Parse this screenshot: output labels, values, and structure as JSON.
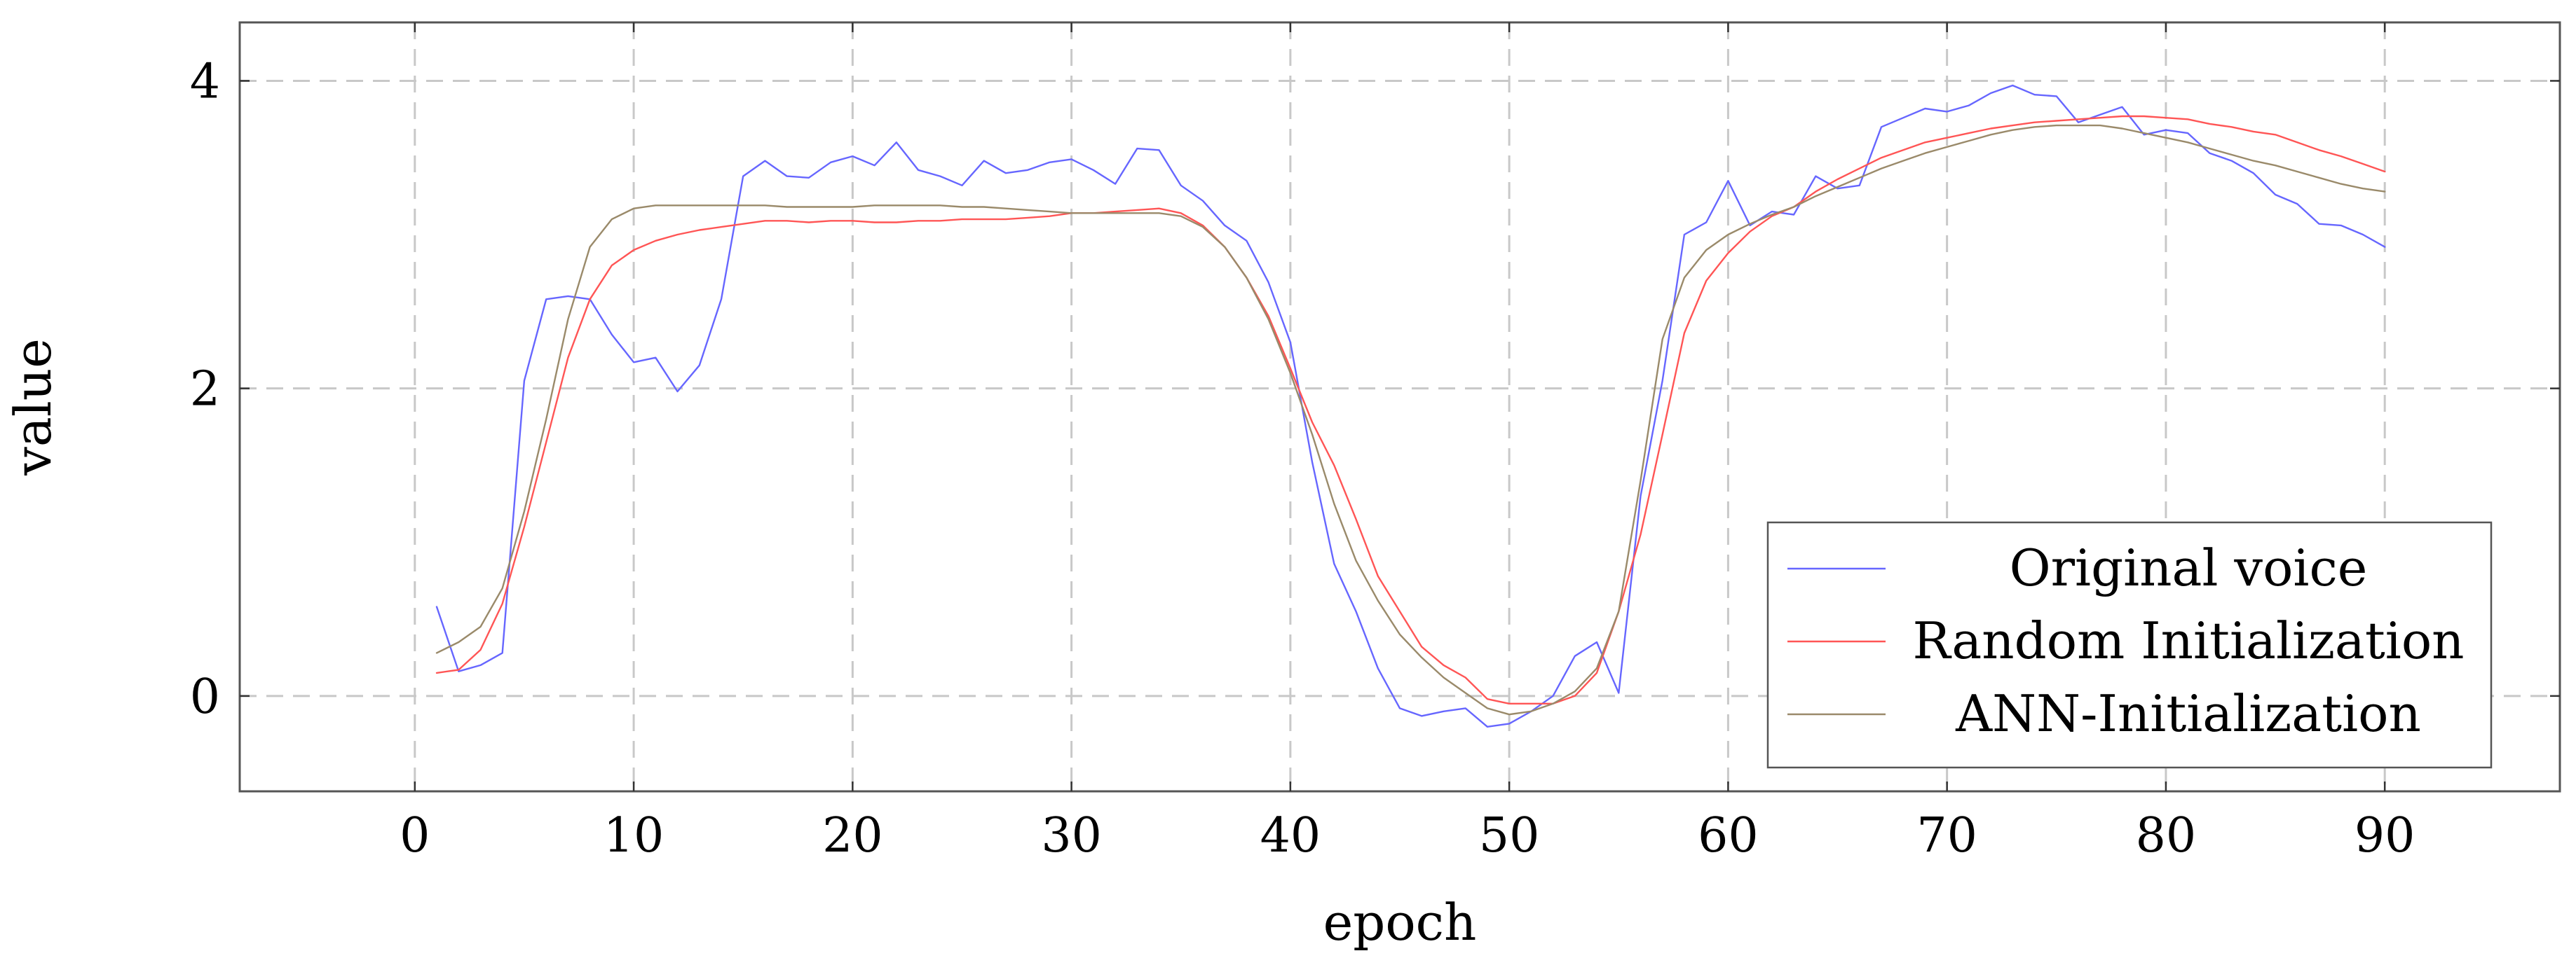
{
  "chart_data": {
    "type": "line",
    "title": "",
    "xlabel": "epoch",
    "ylabel": "value",
    "xlim": [
      -8,
      98
    ],
    "ylim": [
      -0.62,
      4.38
    ],
    "xticks": [
      0,
      10,
      20,
      30,
      40,
      50,
      60,
      70,
      80,
      90
    ],
    "yticks": [
      0,
      2,
      4
    ],
    "grid": true,
    "legend_position": "bottom-right",
    "x": [
      1,
      2,
      3,
      4,
      5,
      6,
      7,
      8,
      9,
      10,
      11,
      12,
      13,
      14,
      15,
      16,
      17,
      18,
      19,
      20,
      21,
      22,
      23,
      24,
      25,
      26,
      27,
      28,
      29,
      30,
      31,
      32,
      33,
      34,
      35,
      36,
      37,
      38,
      39,
      40,
      41,
      42,
      43,
      44,
      45,
      46,
      47,
      48,
      49,
      50,
      51,
      52,
      53,
      54,
      55,
      56,
      57,
      58,
      59,
      60,
      61,
      62,
      63,
      64,
      65,
      66,
      67,
      68,
      69,
      70,
      71,
      72,
      73,
      74,
      75,
      76,
      77,
      78,
      79,
      80,
      81,
      82,
      83,
      84,
      85,
      86,
      87,
      88,
      89,
      90
    ],
    "series": [
      {
        "name": "Original voice",
        "color": "#6666ff",
        "values": [
          0.58,
          0.16,
          0.2,
          0.28,
          2.05,
          2.58,
          2.6,
          2.58,
          2.35,
          2.17,
          2.2,
          1.98,
          2.15,
          2.58,
          3.38,
          3.48,
          3.38,
          3.37,
          3.47,
          3.51,
          3.45,
          3.6,
          3.42,
          3.38,
          3.32,
          3.48,
          3.4,
          3.42,
          3.47,
          3.49,
          3.42,
          3.33,
          3.56,
          3.55,
          3.32,
          3.22,
          3.06,
          2.96,
          2.69,
          2.3,
          1.52,
          0.86,
          0.55,
          0.18,
          -0.08,
          -0.13,
          -0.1,
          -0.08,
          -0.2,
          -0.18,
          -0.1,
          0.0,
          0.26,
          0.35,
          0.02,
          1.3,
          2.05,
          3.0,
          3.08,
          3.35,
          3.06,
          3.15,
          3.13,
          3.38,
          3.3,
          3.32,
          3.7,
          3.76,
          3.82,
          3.8,
          3.84,
          3.92,
          3.97,
          3.91,
          3.9,
          3.73,
          3.78,
          3.83,
          3.65,
          3.68,
          3.66,
          3.53,
          3.48,
          3.4,
          3.26,
          3.2,
          3.07,
          3.06,
          3.0,
          2.92
        ]
      },
      {
        "name": "Random Initialization",
        "color": "#ff5555",
        "values": [
          0.15,
          0.17,
          0.3,
          0.6,
          1.1,
          1.65,
          2.2,
          2.58,
          2.8,
          2.9,
          2.96,
          3.0,
          3.03,
          3.05,
          3.07,
          3.09,
          3.09,
          3.08,
          3.09,
          3.09,
          3.08,
          3.08,
          3.09,
          3.09,
          3.1,
          3.1,
          3.1,
          3.11,
          3.12,
          3.14,
          3.14,
          3.15,
          3.16,
          3.17,
          3.14,
          3.06,
          2.92,
          2.72,
          2.47,
          2.13,
          1.78,
          1.5,
          1.15,
          0.78,
          0.55,
          0.32,
          0.2,
          0.12,
          -0.02,
          -0.05,
          -0.05,
          -0.05,
          0.0,
          0.15,
          0.55,
          1.05,
          1.7,
          2.36,
          2.7,
          2.88,
          3.02,
          3.12,
          3.18,
          3.28,
          3.36,
          3.43,
          3.5,
          3.55,
          3.6,
          3.63,
          3.66,
          3.69,
          3.71,
          3.73,
          3.74,
          3.75,
          3.76,
          3.77,
          3.77,
          3.76,
          3.75,
          3.72,
          3.7,
          3.67,
          3.65,
          3.6,
          3.55,
          3.51,
          3.46,
          3.41
        ]
      },
      {
        "name": "ANN-Initialization",
        "color": "#9a8a6a",
        "values": [
          0.28,
          0.35,
          0.45,
          0.7,
          1.2,
          1.8,
          2.45,
          2.92,
          3.1,
          3.17,
          3.19,
          3.19,
          3.19,
          3.19,
          3.19,
          3.19,
          3.18,
          3.18,
          3.18,
          3.18,
          3.19,
          3.19,
          3.19,
          3.19,
          3.18,
          3.18,
          3.17,
          3.16,
          3.15,
          3.14,
          3.14,
          3.14,
          3.14,
          3.14,
          3.12,
          3.05,
          2.92,
          2.72,
          2.45,
          2.1,
          1.7,
          1.25,
          0.88,
          0.62,
          0.4,
          0.25,
          0.12,
          0.02,
          -0.08,
          -0.12,
          -0.1,
          -0.05,
          0.03,
          0.18,
          0.55,
          1.4,
          2.32,
          2.72,
          2.9,
          3.0,
          3.07,
          3.13,
          3.18,
          3.25,
          3.31,
          3.37,
          3.43,
          3.48,
          3.53,
          3.57,
          3.61,
          3.65,
          3.68,
          3.7,
          3.71,
          3.71,
          3.71,
          3.69,
          3.66,
          3.63,
          3.6,
          3.56,
          3.52,
          3.48,
          3.45,
          3.41,
          3.37,
          3.33,
          3.3,
          3.28
        ]
      }
    ]
  }
}
